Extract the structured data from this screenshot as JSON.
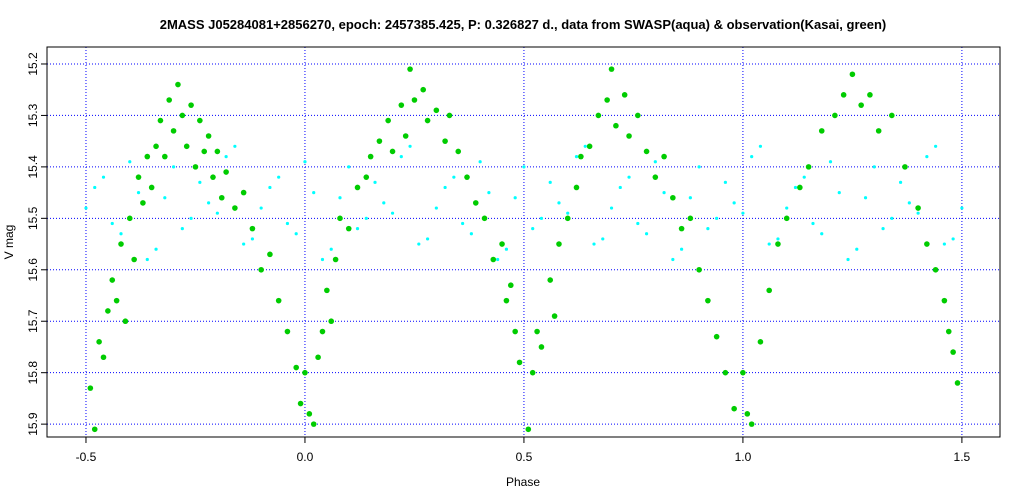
{
  "chart_data": {
    "type": "scatter",
    "title": "2MASS J05284081+2856270, epoch: 2457385.425, P: 0.326827 d., data from SWASP(aqua) & observation(Kasai, green)",
    "x_label": "Phase",
    "y_label": "V mag",
    "xlim": [
      -0.589,
      1.587
    ],
    "ylim": [
      15.925,
      15.167
    ],
    "xticks": [
      -0.5,
      {
        "value": 0,
        "label": "0.0"
      },
      0.5,
      {
        "value": 1,
        "label": "1.0"
      },
      1.5
    ],
    "yticks": [
      15.2,
      15.3,
      15.4,
      15.5,
      15.6,
      15.7,
      15.8,
      15.9
    ],
    "grid": true,
    "grid_color": "#0000ff",
    "series": [
      {
        "name": "SWASP",
        "color": "#00ffff",
        "x": [
          -0.5,
          -0.46,
          -0.42,
          -0.38,
          -0.34,
          -0.3,
          -0.26,
          -0.22,
          -0.18,
          -0.14,
          -0.1,
          -0.06,
          -0.02,
          0.02,
          0.06,
          0.1,
          0.14,
          0.18,
          0.22,
          0.26,
          0.3,
          0.34,
          0.38,
          0.42,
          0.46,
          0.5,
          0.54,
          0.58,
          0.62,
          0.66,
          0.7,
          0.74,
          0.78,
          0.82,
          0.86,
          0.9,
          0.94,
          0.98,
          1.02,
          1.06,
          1.1,
          1.14,
          1.18,
          1.22,
          1.26,
          1.3,
          1.34,
          1.38,
          1.42,
          1.46,
          1.5,
          -0.48,
          -0.44,
          -0.4,
          -0.36,
          -0.32,
          -0.28,
          -0.24,
          -0.2,
          -0.16,
          -0.12,
          -0.08,
          -0.04,
          0,
          0.04,
          0.08,
          0.12,
          0.16,
          0.2,
          0.24,
          0.28,
          0.32,
          0.36,
          0.4,
          0.44,
          0.48,
          0.52,
          0.56,
          0.6,
          0.64,
          0.68,
          0.72,
          0.76,
          0.8,
          0.84,
          0.88,
          0.92,
          0.96,
          1,
          1.04,
          1.08,
          1.12,
          1.16,
          1.2,
          1.24,
          1.28,
          1.32,
          1.36,
          1.4,
          1.44,
          1.48
        ],
        "y": [
          15.48,
          15.42,
          15.53,
          15.45,
          15.56,
          15.4,
          15.5,
          15.47,
          15.38,
          15.55,
          15.48,
          15.42,
          15.53,
          15.45,
          15.56,
          15.4,
          15.5,
          15.47,
          15.38,
          15.55,
          15.48,
          15.42,
          15.53,
          15.45,
          15.56,
          15.4,
          15.5,
          15.47,
          15.38,
          15.55,
          15.48,
          15.42,
          15.53,
          15.45,
          15.56,
          15.4,
          15.5,
          15.47,
          15.38,
          15.55,
          15.48,
          15.42,
          15.53,
          15.45,
          15.56,
          15.4,
          15.5,
          15.47,
          15.38,
          15.55,
          15.48,
          15.44,
          15.51,
          15.39,
          15.58,
          15.46,
          15.52,
          15.43,
          15.49,
          15.36,
          15.54,
          15.44,
          15.51,
          15.39,
          15.58,
          15.46,
          15.52,
          15.43,
          15.49,
          15.36,
          15.54,
          15.44,
          15.51,
          15.39,
          15.58,
          15.46,
          15.52,
          15.43,
          15.49,
          15.36,
          15.54,
          15.44,
          15.51,
          15.39,
          15.58,
          15.46,
          15.52,
          15.43,
          15.49,
          15.36,
          15.54,
          15.44,
          15.51,
          15.39,
          15.58,
          15.46,
          15.52,
          15.43,
          15.49,
          15.36,
          15.54
        ]
      },
      {
        "name": "Kasai",
        "color": "#00cc00",
        "x": [
          -0.49,
          -0.48,
          -0.47,
          -0.46,
          -0.45,
          -0.44,
          -0.43,
          -0.42,
          -0.41,
          -0.4,
          -0.39,
          -0.38,
          -0.37,
          -0.36,
          -0.35,
          -0.34,
          -0.33,
          -0.32,
          -0.31,
          -0.3,
          -0.29,
          -0.28,
          -0.27,
          -0.26,
          -0.25,
          -0.24,
          -0.23,
          -0.22,
          -0.21,
          -0.2,
          -0.19,
          -0.18,
          -0.16,
          -0.14,
          -0.12,
          -0.1,
          -0.08,
          -0.06,
          -0.04,
          -0.02,
          -0.01,
          0,
          0.01,
          0.02,
          0.03,
          0.04,
          0.05,
          0.06,
          0.07,
          0.08,
          0.1,
          0.12,
          0.14,
          0.15,
          0.17,
          0.19,
          0.2,
          0.22,
          0.23,
          0.24,
          0.25,
          0.27,
          0.28,
          0.3,
          0.32,
          0.33,
          0.35,
          0.37,
          0.39,
          0.41,
          0.43,
          0.45,
          0.46,
          0.47,
          0.48,
          0.49,
          0.51,
          0.52,
          0.53,
          0.54,
          0.56,
          0.57,
          0.58,
          0.6,
          0.62,
          0.63,
          0.65,
          0.67,
          0.69,
          0.7,
          0.71,
          0.73,
          0.74,
          0.76,
          0.78,
          0.8,
          0.82,
          0.84,
          0.86,
          0.88,
          0.9,
          0.92,
          0.94,
          0.96,
          0.98,
          1,
          1.01,
          1.02,
          1.04,
          1.06,
          1.08,
          1.1,
          1.13,
          1.15,
          1.18,
          1.21,
          1.23,
          1.25,
          1.27,
          1.29,
          1.31,
          1.34,
          1.37,
          1.4,
          1.42,
          1.44,
          1.46,
          1.47,
          1.48,
          1.49
        ],
        "y": [
          15.83,
          15.91,
          15.74,
          15.77,
          15.68,
          15.62,
          15.66,
          15.55,
          15.7,
          15.5,
          15.58,
          15.42,
          15.47,
          15.38,
          15.44,
          15.36,
          15.31,
          15.38,
          15.27,
          15.33,
          15.24,
          15.3,
          15.36,
          15.28,
          15.4,
          15.31,
          15.37,
          15.34,
          15.42,
          15.37,
          15.46,
          15.41,
          15.48,
          15.45,
          15.52,
          15.6,
          15.57,
          15.66,
          15.72,
          15.79,
          15.86,
          15.8,
          15.88,
          15.9,
          15.77,
          15.72,
          15.64,
          15.7,
          15.58,
          15.5,
          15.52,
          15.44,
          15.42,
          15.38,
          15.35,
          15.31,
          15.37,
          15.28,
          15.34,
          15.21,
          15.27,
          15.25,
          15.31,
          15.29,
          15.35,
          15.3,
          15.37,
          15.42,
          15.47,
          15.5,
          15.58,
          15.55,
          15.66,
          15.63,
          15.72,
          15.78,
          15.91,
          15.8,
          15.72,
          15.75,
          15.62,
          15.69,
          15.55,
          15.5,
          15.44,
          15.38,
          15.36,
          15.3,
          15.27,
          15.21,
          15.32,
          15.26,
          15.34,
          15.3,
          15.37,
          15.42,
          15.38,
          15.46,
          15.52,
          15.5,
          15.6,
          15.66,
          15.73,
          15.8,
          15.87,
          15.8,
          15.88,
          15.9,
          15.74,
          15.64,
          15.55,
          15.5,
          15.44,
          15.4,
          15.33,
          15.3,
          15.26,
          15.22,
          15.28,
          15.26,
          15.33,
          15.3,
          15.4,
          15.48,
          15.55,
          15.6,
          15.66,
          15.72,
          15.76,
          15.82
        ]
      }
    ]
  }
}
